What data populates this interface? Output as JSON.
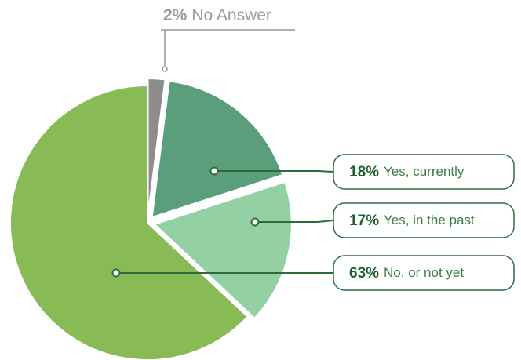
{
  "chart_data": {
    "type": "pie",
    "categories": [
      "No Answer",
      "Yes, currently",
      "Yes, in the past",
      "No, or not yet"
    ],
    "values": [
      2,
      18,
      17,
      63
    ],
    "value_labels": [
      "2%",
      "18%",
      "17%",
      "63%"
    ],
    "colors": [
      "#8c8c8c",
      "#5a9e7c",
      "#93d1a5",
      "#88ba55"
    ]
  }
}
